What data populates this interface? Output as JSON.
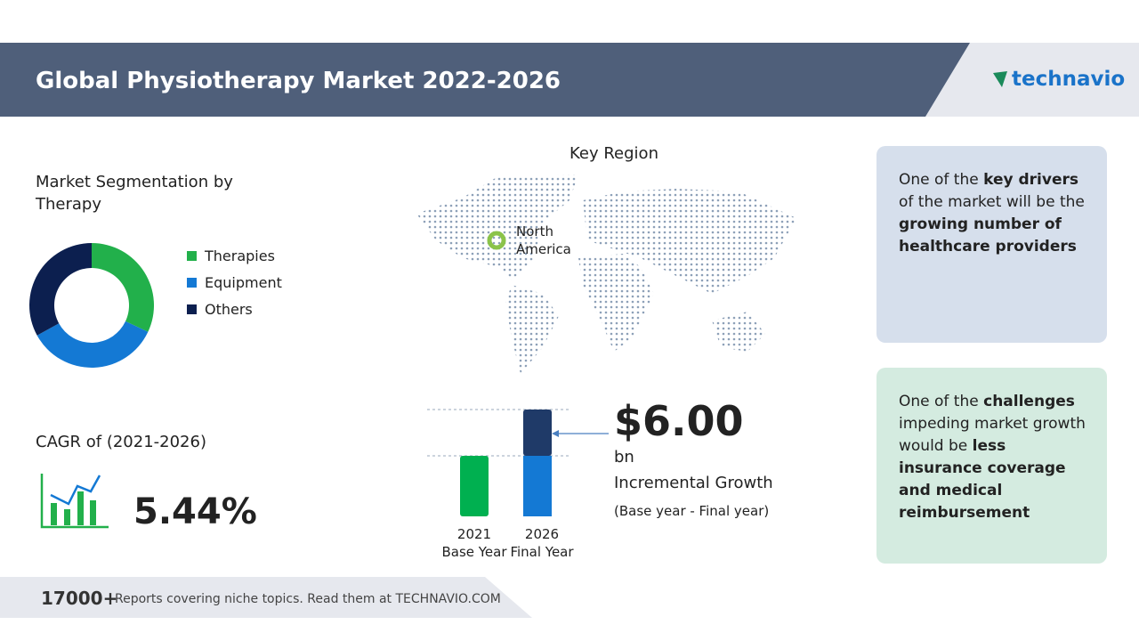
{
  "header": {
    "title": "Global Physiotherapy Market 2022-2026",
    "logo": "technavio"
  },
  "segmentation": {
    "type": "donut",
    "title": "Market Segmentation by Therapy",
    "segments": [
      {
        "name": "Therapies",
        "color": "#22b04b",
        "value": 32
      },
      {
        "name": "Equipment",
        "color": "#1479d4",
        "value": 35
      },
      {
        "name": "Others",
        "color": "#0c1f4f",
        "value": 33
      }
    ]
  },
  "cagr": {
    "label": "CAGR of (2021-2026)",
    "value": "5.44%"
  },
  "key_region": {
    "title": "Key Region",
    "region": "North America"
  },
  "growth": {
    "amount": "$6.00",
    "unit": "bn",
    "label": "Incremental Growth",
    "note": "(Base year - Final year)",
    "bars": [
      {
        "year": "2021",
        "label": "Base Year"
      },
      {
        "year": "2026",
        "label": "Final Year"
      }
    ]
  },
  "drivers": {
    "parts": [
      {
        "text": "One of the ",
        "bold": false
      },
      {
        "text": "key drivers",
        "bold": true
      },
      {
        "text": " of the market will be the ",
        "bold": false
      },
      {
        "text": "growing number of healthcare providers",
        "bold": true
      }
    ]
  },
  "challenges": {
    "parts": [
      {
        "text": "One of the ",
        "bold": false
      },
      {
        "text": "challenges",
        "bold": true
      },
      {
        "text": " impeding market growth would be ",
        "bold": false
      },
      {
        "text": "less insurance coverage and medical reimbursement",
        "bold": true
      }
    ]
  },
  "footer": {
    "count": "17000+",
    "text": "Reports covering niche topics. Read them at TECHNAVIO.COM"
  }
}
